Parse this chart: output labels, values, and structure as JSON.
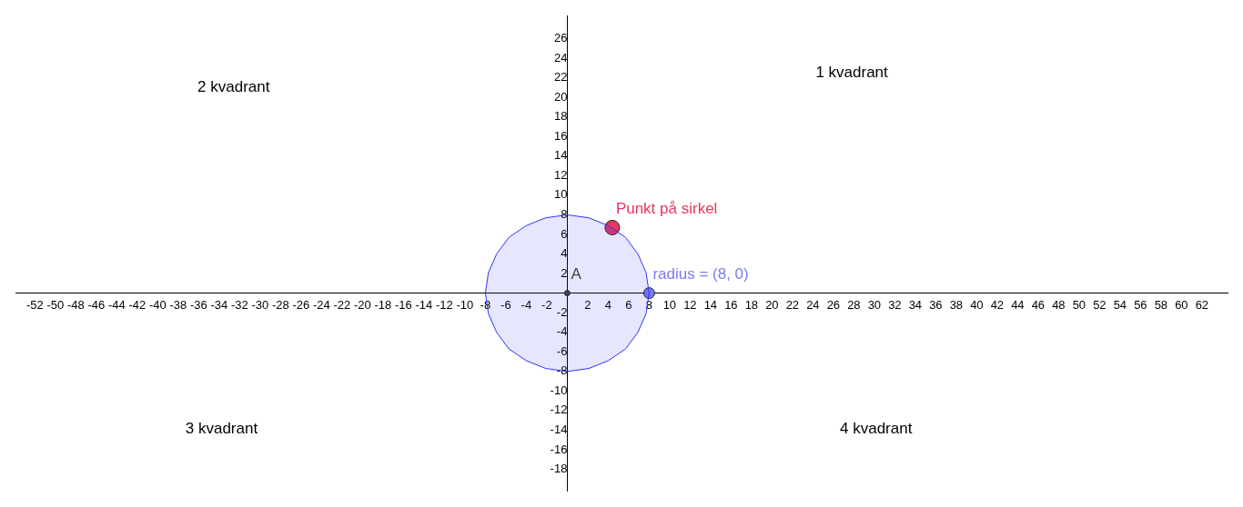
{
  "chart_data": {
    "type": "scatter",
    "xlim": [
      -53.9,
      64.5
    ],
    "ylim": [
      -20.2,
      28.3
    ],
    "xticks": [
      -52,
      -50,
      -48,
      -46,
      -44,
      -42,
      -40,
      -38,
      -36,
      -34,
      -32,
      -30,
      -28,
      -26,
      -24,
      -22,
      -20,
      -18,
      -16,
      -14,
      -12,
      -10,
      -8,
      -6,
      -4,
      -2,
      2,
      4,
      6,
      8,
      10,
      12,
      14,
      16,
      18,
      20,
      22,
      24,
      26,
      28,
      30,
      32,
      34,
      36,
      38,
      40,
      42,
      44,
      46,
      48,
      50,
      52,
      54,
      56,
      58,
      60,
      62
    ],
    "yticks": [
      -18,
      -16,
      -14,
      -12,
      -10,
      -8,
      -6,
      -4,
      -2,
      2,
      4,
      6,
      8,
      10,
      12,
      14,
      16,
      18,
      20,
      22,
      24,
      26
    ],
    "grid": false,
    "legend": false,
    "marker": "circle",
    "series": [
      {
        "type": "area",
        "marker": "none",
        "color": "#3333ff",
        "x": [
          8,
          7.7,
          6.9,
          5.7,
          4,
          2.1,
          0,
          -2.1,
          -4,
          -5.7,
          -6.9,
          -7.7,
          -8,
          -7.7,
          -6.9,
          -5.7,
          -4,
          -2.1,
          0,
          2.1,
          4,
          5.7,
          6.9,
          7.7,
          8
        ],
        "values": [
          0,
          2.1,
          4,
          5.7,
          6.9,
          7.7,
          8,
          7.7,
          6.9,
          5.7,
          4,
          2.1,
          0,
          -2.1,
          -4,
          -5.7,
          -6.9,
          -7.7,
          -8,
          -7.7,
          -6.9,
          -5.7,
          -4,
          -2.1,
          0
        ]
      },
      {
        "name": "A",
        "color": "#444444",
        "x": [
          0
        ],
        "values": [
          0
        ]
      },
      {
        "name": "Punkt på sirkel",
        "color": "#e8365e",
        "x": [
          4.4
        ],
        "values": [
          6.7
        ]
      },
      {
        "name": "radius = (8, 0)",
        "color": "#7b7bf0",
        "x": [
          8
        ],
        "values": [
          0
        ]
      }
    ],
    "annotations": [
      "1 kvadrant",
      "2 kvadrant",
      "3 kvadrant",
      "4 kvadrant"
    ]
  }
}
